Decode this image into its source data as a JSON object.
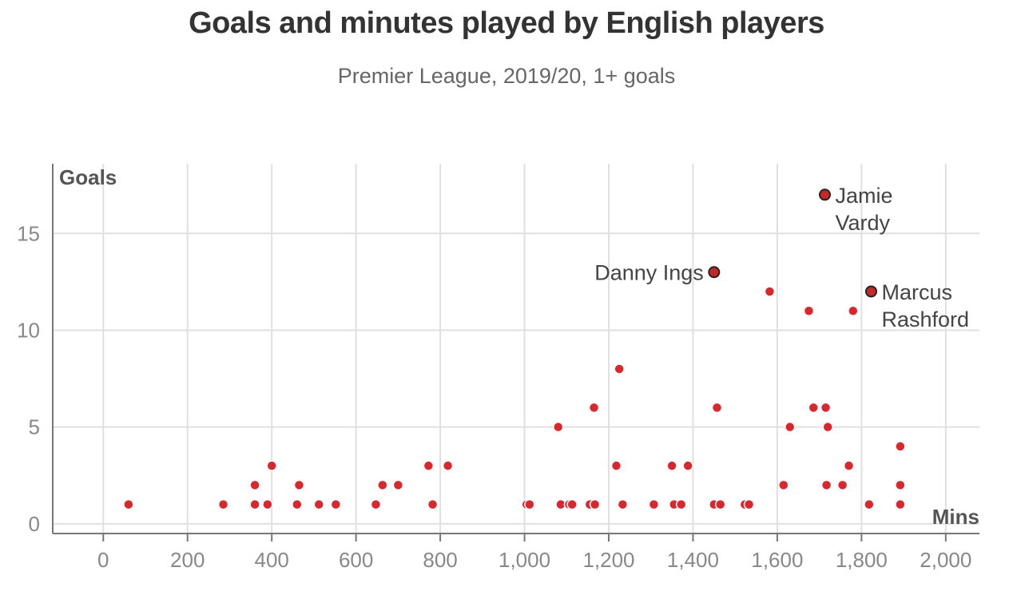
{
  "chart_data": {
    "type": "scatter",
    "title": "Goals and minutes played by English players",
    "subtitle": "Premier League, 2019/20, 1+ goals",
    "xlabel": "Mins",
    "ylabel": "Goals",
    "xlim": [
      -120,
      2080
    ],
    "ylim": [
      -0.5,
      18.6
    ],
    "x_ticks": [
      0,
      200,
      400,
      600,
      800,
      1000,
      1200,
      1400,
      1600,
      1800,
      2000
    ],
    "x_tick_labels": [
      "0",
      "200",
      "400",
      "600",
      "800",
      "1,000",
      "1,200",
      "1,400",
      "1,600",
      "1,800",
      "2,000"
    ],
    "y_ticks": [
      0,
      5,
      10,
      15
    ],
    "y_tick_labels": [
      "0",
      "5",
      "10",
      "15"
    ],
    "grid": true,
    "colors": {
      "point": "#d9272e",
      "highlight_point": "#c62828",
      "highlight_stroke": "#222222",
      "grid": "#e0e0e0",
      "axis": "#777777"
    },
    "points": [
      {
        "x": 60,
        "y": 1
      },
      {
        "x": 285,
        "y": 1
      },
      {
        "x": 360,
        "y": 1
      },
      {
        "x": 360,
        "y": 2
      },
      {
        "x": 390,
        "y": 1
      },
      {
        "x": 400,
        "y": 3
      },
      {
        "x": 460,
        "y": 1
      },
      {
        "x": 465,
        "y": 2
      },
      {
        "x": 512,
        "y": 1
      },
      {
        "x": 552,
        "y": 1
      },
      {
        "x": 647,
        "y": 1
      },
      {
        "x": 663,
        "y": 2
      },
      {
        "x": 700,
        "y": 2
      },
      {
        "x": 772,
        "y": 3
      },
      {
        "x": 782,
        "y": 1
      },
      {
        "x": 818,
        "y": 3
      },
      {
        "x": 1005,
        "y": 1
      },
      {
        "x": 1012,
        "y": 1
      },
      {
        "x": 1080,
        "y": 5
      },
      {
        "x": 1086,
        "y": 1
      },
      {
        "x": 1106,
        "y": 1
      },
      {
        "x": 1113,
        "y": 1
      },
      {
        "x": 1155,
        "y": 1
      },
      {
        "x": 1165,
        "y": 6
      },
      {
        "x": 1167,
        "y": 1
      },
      {
        "x": 1218,
        "y": 3
      },
      {
        "x": 1225,
        "y": 8
      },
      {
        "x": 1233,
        "y": 1
      },
      {
        "x": 1307,
        "y": 1
      },
      {
        "x": 1350,
        "y": 3
      },
      {
        "x": 1355,
        "y": 1
      },
      {
        "x": 1372,
        "y": 1
      },
      {
        "x": 1388,
        "y": 3
      },
      {
        "x": 1450,
        "y": 1
      },
      {
        "x": 1457,
        "y": 6
      },
      {
        "x": 1465,
        "y": 1
      },
      {
        "x": 1523,
        "y": 1
      },
      {
        "x": 1533,
        "y": 1
      },
      {
        "x": 1582,
        "y": 12
      },
      {
        "x": 1615,
        "y": 2
      },
      {
        "x": 1630,
        "y": 5
      },
      {
        "x": 1675,
        "y": 11
      },
      {
        "x": 1686,
        "y": 6
      },
      {
        "x": 1715,
        "y": 6
      },
      {
        "x": 1717,
        "y": 2
      },
      {
        "x": 1720,
        "y": 5
      },
      {
        "x": 1755,
        "y": 2
      },
      {
        "x": 1770,
        "y": 3
      },
      {
        "x": 1780,
        "y": 11
      },
      {
        "x": 1818,
        "y": 1
      },
      {
        "x": 1892,
        "y": 4
      },
      {
        "x": 1892,
        "y": 2
      },
      {
        "x": 1892,
        "y": 1
      }
    ],
    "highlighted": [
      {
        "x": 1450,
        "y": 13,
        "label": [
          "Danny Ings"
        ],
        "anchor": "left"
      },
      {
        "x": 1713,
        "y": 17,
        "label": [
          "Jamie",
          "Vardy"
        ],
        "anchor": "right"
      },
      {
        "x": 1823,
        "y": 12,
        "label": [
          "Marcus",
          "Rashford"
        ],
        "anchor": "right"
      }
    ]
  }
}
